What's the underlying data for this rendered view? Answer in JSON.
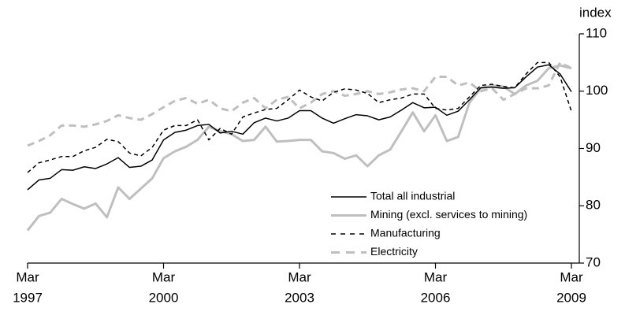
{
  "chart_data": {
    "type": "line",
    "axis_label": "index",
    "x": [
      "1997-03",
      "1997-06",
      "1997-09",
      "1997-12",
      "1998-03",
      "1998-06",
      "1998-09",
      "1998-12",
      "1999-03",
      "1999-06",
      "1999-09",
      "1999-12",
      "2000-03",
      "2000-06",
      "2000-09",
      "2000-12",
      "2001-03",
      "2001-06",
      "2001-09",
      "2001-12",
      "2002-03",
      "2002-06",
      "2002-09",
      "2002-12",
      "2003-03",
      "2003-06",
      "2003-09",
      "2003-12",
      "2004-03",
      "2004-06",
      "2004-09",
      "2004-12",
      "2005-03",
      "2005-06",
      "2005-09",
      "2005-12",
      "2006-03",
      "2006-06",
      "2006-09",
      "2006-12",
      "2007-03",
      "2007-06",
      "2007-09",
      "2007-12",
      "2008-03",
      "2008-06",
      "2008-09",
      "2008-12",
      "2009-03"
    ],
    "xticks": [
      {
        "value": "1997-03",
        "label": [
          "Mar",
          "1997"
        ]
      },
      {
        "value": "2000-03",
        "label": [
          "Mar",
          "2000"
        ]
      },
      {
        "value": "2003-03",
        "label": [
          "Mar",
          "2003"
        ]
      },
      {
        "value": "2006-03",
        "label": [
          "Mar",
          "2006"
        ]
      },
      {
        "value": "2009-03",
        "label": [
          "Mar",
          "2009"
        ]
      }
    ],
    "ylim": [
      70,
      110
    ],
    "yticks": [
      70,
      80,
      90,
      100,
      110
    ],
    "y_axis_side": "right",
    "grid": false,
    "series": [
      {
        "name": "Total all industrial",
        "color": "#000000",
        "width": 1.5,
        "dash": false,
        "values": [
          82.8,
          84.5,
          84.8,
          86.3,
          86.2,
          86.8,
          86.5,
          87.3,
          88.4,
          86.7,
          86.9,
          88.0,
          91.5,
          92.8,
          93.2,
          94.0,
          94.2,
          92.7,
          93.0,
          92.5,
          94.5,
          95.3,
          94.8,
          95.3,
          96.6,
          96.6,
          95.3,
          94.4,
          95.2,
          95.9,
          95.7,
          95.0,
          95.5,
          96.7,
          98.0,
          97.1,
          97.2,
          95.8,
          96.5,
          98.5,
          100.6,
          100.7,
          100.5,
          100.6,
          102.5,
          104.2,
          104.6,
          103.0,
          99.9
        ]
      },
      {
        "name": "Mining (excl. services to mining)",
        "color": "#bfbfbf",
        "width": 3,
        "dash": false,
        "values": [
          75.7,
          78.2,
          78.8,
          81.2,
          80.3,
          79.5,
          80.4,
          78.0,
          83.2,
          81.2,
          83.0,
          84.8,
          88.3,
          89.5,
          90.3,
          91.5,
          93.8,
          93.0,
          92.5,
          91.3,
          91.5,
          93.8,
          91.2,
          91.3,
          91.5,
          91.5,
          89.5,
          89.2,
          88.2,
          88.8,
          86.9,
          88.8,
          89.8,
          93.0,
          96.3,
          93.0,
          95.8,
          91.3,
          92.0,
          98.0,
          100.5,
          101.0,
          100.8,
          99.5,
          101.0,
          101.8,
          104.0,
          104.5,
          104.0
        ]
      },
      {
        "name": "Manufacturing",
        "color": "#000000",
        "width": 1.5,
        "dash": true,
        "values": [
          85.8,
          87.5,
          88.0,
          88.6,
          88.6,
          89.6,
          90.2,
          91.6,
          91.2,
          89.2,
          88.7,
          90.2,
          93.2,
          94.0,
          94.0,
          95.0,
          91.5,
          93.5,
          92.5,
          95.5,
          96.2,
          96.8,
          97.0,
          98.5,
          100.2,
          99.0,
          98.3,
          99.8,
          100.4,
          100.2,
          99.6,
          98.0,
          98.5,
          98.8,
          99.5,
          99.5,
          97.0,
          96.7,
          97.0,
          99.0,
          101.0,
          101.2,
          100.8,
          100.6,
          103.0,
          105.0,
          105.0,
          102.5,
          96.5
        ]
      },
      {
        "name": "Electricity",
        "color": "#bfbfbf",
        "width": 3,
        "dash": true,
        "values": [
          90.5,
          91.3,
          92.3,
          94.0,
          94.0,
          93.8,
          94.2,
          94.8,
          95.8,
          95.3,
          95.0,
          96.0,
          97.2,
          98.3,
          98.8,
          97.8,
          98.5,
          97.0,
          96.5,
          98.0,
          98.8,
          97.0,
          98.5,
          99.0,
          97.0,
          98.0,
          99.5,
          100.0,
          99.2,
          99.5,
          100.0,
          99.5,
          99.8,
          100.3,
          100.5,
          100.0,
          102.5,
          102.5,
          101.0,
          101.5,
          100.0,
          100.5,
          98.5,
          99.5,
          100.5,
          100.5,
          101.0,
          105.0,
          104.0
        ]
      }
    ]
  }
}
